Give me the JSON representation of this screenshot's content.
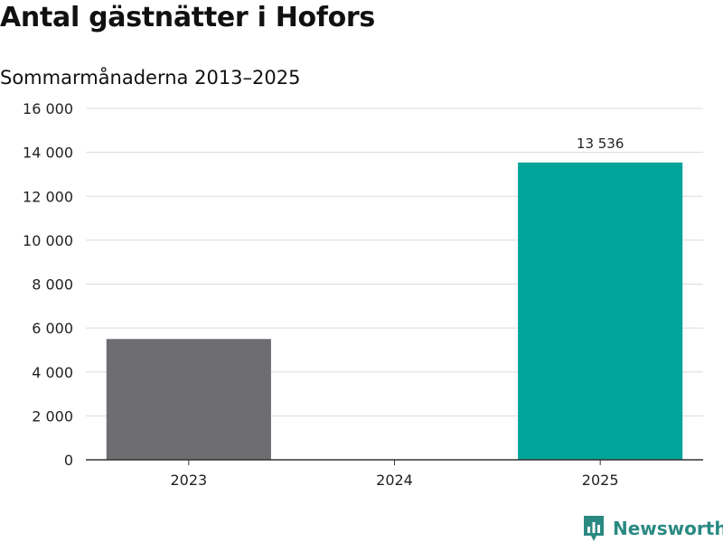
{
  "chart_data": {
    "type": "bar",
    "title": "Antal gästnätter i Hofors",
    "subtitle": "Sommarmånaderna 2013–2025",
    "categories": [
      "2023",
      "2024",
      "2025"
    ],
    "values": [
      5500,
      null,
      13536
    ],
    "bar_colors": [
      "#6d6d72",
      "#6d6d72",
      "#00a49a"
    ],
    "data_labels": [
      "",
      "",
      "13 536"
    ],
    "ylim": [
      0,
      16000
    ],
    "yticks": [
      0,
      2000,
      4000,
      6000,
      8000,
      10000,
      12000,
      14000,
      16000
    ],
    "ytick_labels": [
      "0",
      "2 000",
      "4 000",
      "6 000",
      "8 000",
      "10 000",
      "12 000",
      "14 000",
      "16 000"
    ],
    "grid": true,
    "xlabel": "",
    "ylabel": ""
  },
  "branding": {
    "name": "Newsworthy",
    "color": "#2a8a82",
    "icon": "newsworthy-logo-icon"
  }
}
